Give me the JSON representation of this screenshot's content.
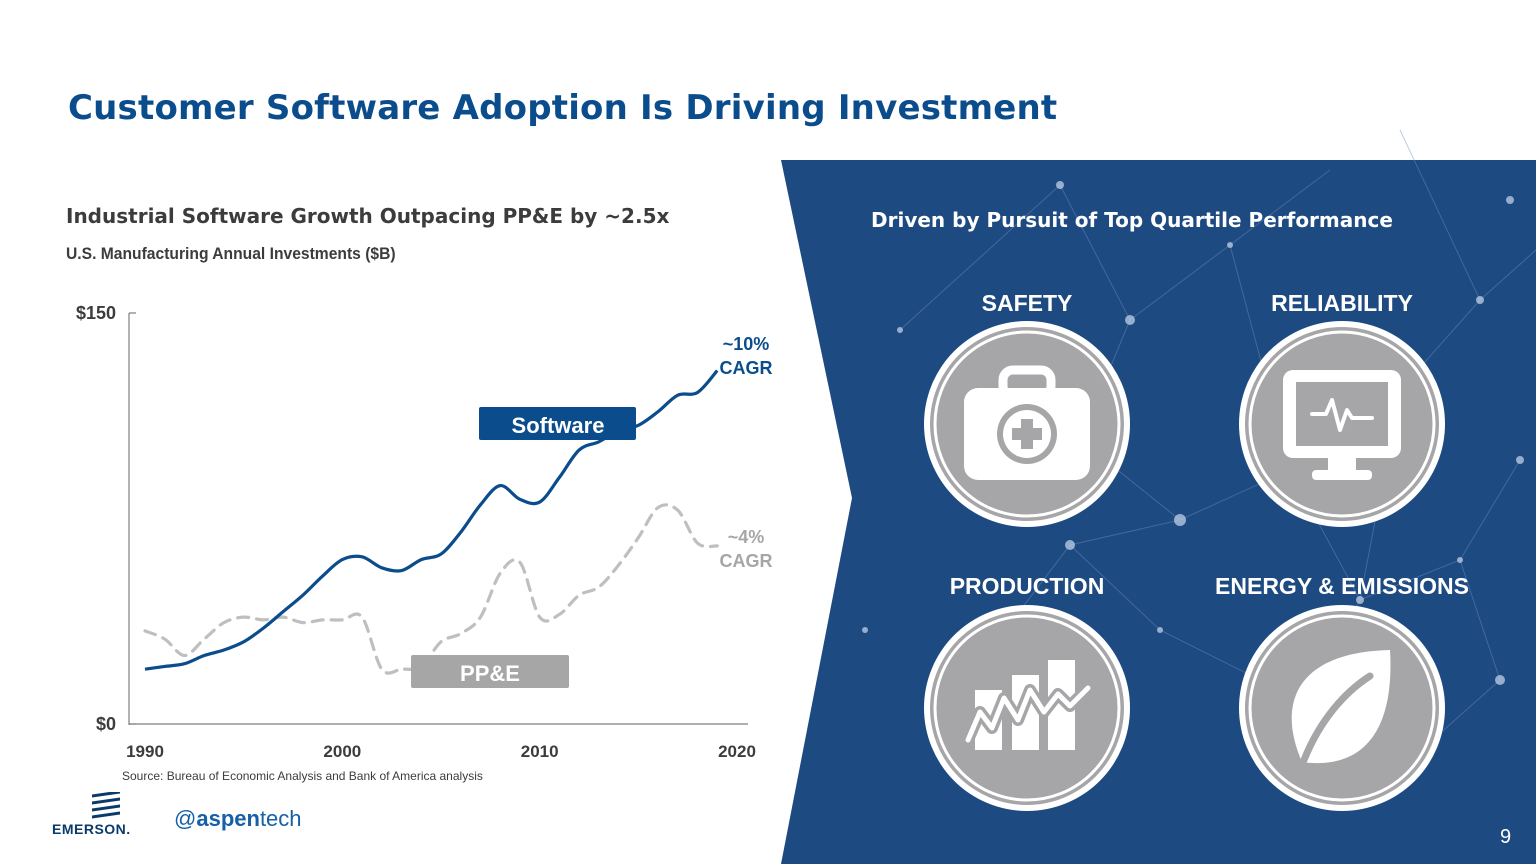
{
  "title": "Customer Software Adoption Is Driving Investment",
  "chart_heading": "Industrial Software Growth Outpacing PP&E by ~2.5x",
  "chart_subheading": "U.S. Manufacturing Annual Investments ($B)",
  "source": "Source: Bureau of Economic Analysis and Bank of America analysis",
  "chart_data": {
    "type": "line",
    "title": "Industrial Software Growth Outpacing PP&E by ~2.5x",
    "ylabel": "U.S. Manufacturing Annual Investments ($B)",
    "xlim": [
      1990,
      2020
    ],
    "ylim": [
      0,
      150
    ],
    "x_ticks": [
      "1990",
      "2000",
      "2010",
      "2020"
    ],
    "y_ticks": [
      "$0",
      "$150"
    ],
    "series": [
      {
        "name": "Software",
        "label": "Software",
        "style": "solid",
        "color": "#0b4d8c",
        "cagr_label": "~10%\nCAGR",
        "cagr_lines": [
          "~10%",
          "CAGR"
        ],
        "x": [
          1990,
          1991,
          1992,
          1993,
          1994,
          1995,
          1996,
          1997,
          1998,
          1999,
          2000,
          2001,
          2002,
          2003,
          2004,
          2005,
          2006,
          2007,
          2008,
          2009,
          2010,
          2011,
          2012,
          2013,
          2014,
          2015,
          2016,
          2017,
          2018,
          2019
        ],
        "y": [
          20,
          21,
          22,
          25,
          27,
          30,
          35,
          41,
          47,
          54,
          60,
          61,
          57,
          56,
          60,
          62,
          70,
          80,
          87,
          82,
          81,
          90,
          100,
          103,
          107,
          109,
          114,
          120,
          121,
          129
        ]
      },
      {
        "name": "PP&E",
        "label": "PP&E",
        "style": "dashed",
        "color": "#bfbfbf",
        "cagr_label": "~4%\nCAGR",
        "cagr_lines": [
          "~4%",
          "CAGR"
        ],
        "x": [
          1990,
          1991,
          1992,
          1993,
          1994,
          1995,
          1996,
          1997,
          1998,
          1999,
          2000,
          2001,
          2002,
          2003,
          2004,
          2005,
          2006,
          2007,
          2008,
          2009,
          2010,
          2011,
          2012,
          2013,
          2014,
          2015,
          2016,
          2017,
          2018,
          2019
        ],
        "y": [
          34,
          31,
          25,
          31,
          37,
          39,
          38,
          39,
          37,
          38,
          38,
          39,
          20,
          20,
          21,
          30,
          33,
          39,
          55,
          59,
          39,
          40,
          47,
          50,
          58,
          68,
          79,
          78,
          66,
          65
        ]
      }
    ]
  },
  "right_panel": {
    "heading": "Driven by Pursuit of Top Quartile Performance",
    "categories": [
      {
        "label": "SAFETY",
        "icon": "first-aid-kit-icon"
      },
      {
        "label": "RELIABILITY",
        "icon": "monitor-heartbeat-icon"
      },
      {
        "label": "PRODUCTION",
        "icon": "production-chart-icon"
      },
      {
        "label": "ENERGY & EMISSIONS",
        "icon": "leaf-icon"
      }
    ]
  },
  "logos": {
    "emerson": "EMERSON",
    "emerson_mark": ".",
    "aspentech_prefix": "aspen",
    "aspentech_suffix": "tech"
  },
  "page_number": "9",
  "colors": {
    "brand_blue": "#0b4d8c",
    "panel_blue": "#1e4a82",
    "ppe_gray": "#bfbfbf",
    "label_gray": "#a6a6a6",
    "icon_gray": "#a6a6a8"
  }
}
